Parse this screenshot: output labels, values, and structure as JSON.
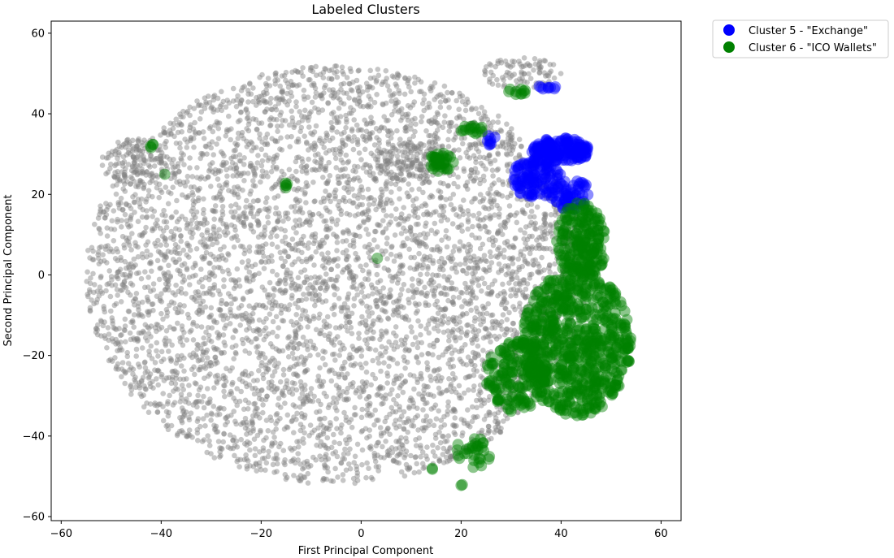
{
  "chart_data": {
    "type": "scatter",
    "title": "Labeled Clusters",
    "xlabel": "First Principal Component",
    "ylabel": "Second Principal Component",
    "xlim": [
      -62,
      64
    ],
    "ylim": [
      -61,
      63
    ],
    "xticks": [
      -60,
      -40,
      -20,
      0,
      20,
      40,
      60
    ],
    "yticks": [
      -60,
      -40,
      -20,
      0,
      20,
      40,
      60
    ],
    "grid": false,
    "legend_position": "outside-top-right",
    "background_points": {
      "color": "#808080",
      "description_regions": [
        {
          "cx": -5,
          "cy": 0,
          "rx": 50,
          "ry": 52,
          "count": 5200
        },
        {
          "cx": -45,
          "cy": 28,
          "rx": 7,
          "ry": 6,
          "count": 130
        },
        {
          "cx": 32,
          "cy": 50,
          "rx": 8,
          "ry": 4,
          "count": 90
        },
        {
          "cx": 10,
          "cy": 28,
          "rx": 7,
          "ry": 5,
          "count": 110
        }
      ]
    },
    "series": [
      {
        "name": "Cluster 5 - \"Exchange\"",
        "color": "#0000ff",
        "regions": [
          {
            "cx": 40,
            "cy": 31,
            "rx": 6,
            "ry": 3,
            "count": 140
          },
          {
            "cx": 35,
            "cy": 24,
            "rx": 5,
            "ry": 5,
            "count": 110
          },
          {
            "cx": 42,
            "cy": 20,
            "rx": 4,
            "ry": 4,
            "count": 60
          },
          {
            "cx": 37,
            "cy": 46.5,
            "rx": 2,
            "ry": 0.6,
            "count": 8
          },
          {
            "cx": 26,
            "cy": 34,
            "rx": 1.5,
            "ry": 2,
            "count": 8
          }
        ]
      },
      {
        "name": "Cluster 6 - \"ICO Wallets\"",
        "color": "#008000",
        "regions": [
          {
            "cx": 43,
            "cy": -17,
            "rx": 11,
            "ry": 18,
            "count": 650
          },
          {
            "cx": 44,
            "cy": 8,
            "rx": 5,
            "ry": 10,
            "count": 200
          },
          {
            "cx": 31,
            "cy": -25,
            "rx": 6,
            "ry": 9,
            "count": 160
          },
          {
            "cx": 22,
            "cy": -44,
            "rx": 4,
            "ry": 4,
            "count": 30
          },
          {
            "cx": 16,
            "cy": 28,
            "rx": 2.5,
            "ry": 2.5,
            "count": 35
          },
          {
            "cx": 22,
            "cy": 36,
            "rx": 3,
            "ry": 1,
            "count": 15
          },
          {
            "cx": 31,
            "cy": 45.5,
            "rx": 2,
            "ry": 0.8,
            "count": 10
          },
          {
            "cx": -15,
            "cy": 22,
            "rx": 0.3,
            "ry": 1,
            "count": 5
          },
          {
            "cx": -42,
            "cy": 32,
            "rx": 1,
            "ry": 0.8,
            "count": 4
          },
          {
            "cx": -39,
            "cy": 25,
            "rx": 0.3,
            "ry": 0.3,
            "count": 1
          },
          {
            "cx": 3,
            "cy": 4,
            "rx": 0.3,
            "ry": 0.3,
            "count": 1
          },
          {
            "cx": 20,
            "cy": -52,
            "rx": 0.5,
            "ry": 0.3,
            "count": 2
          },
          {
            "cx": 14,
            "cy": -48,
            "rx": 0.4,
            "ry": 0.3,
            "count": 2
          }
        ]
      }
    ]
  }
}
